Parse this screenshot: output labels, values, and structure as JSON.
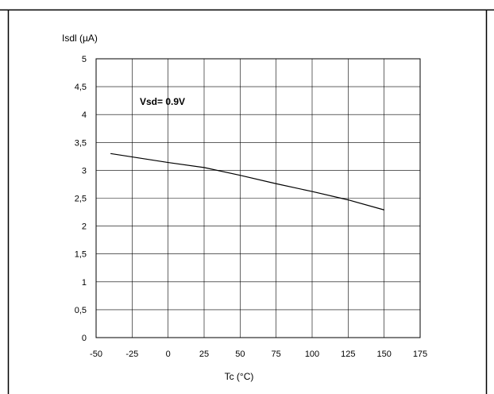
{
  "chart_data": {
    "type": "line",
    "title": "",
    "ylabel": "Isdl (µA)",
    "xlabel": "Tc (°C)",
    "annotation": "Vsd= 0.9V",
    "xlim": [
      -50,
      175
    ],
    "ylim": [
      0,
      5
    ],
    "xticks": [
      -50,
      -25,
      0,
      25,
      50,
      75,
      100,
      125,
      150,
      175
    ],
    "yticks": [
      0,
      0.5,
      1,
      1.5,
      2,
      2.5,
      3,
      3.5,
      4,
      4.5,
      5
    ],
    "xtick_labels": [
      "-50",
      "-25",
      "0",
      "25",
      "50",
      "75",
      "100",
      "125",
      "150",
      "175"
    ],
    "ytick_labels": [
      "0",
      "0,5",
      "1",
      "1,5",
      "2",
      "2,5",
      "3",
      "3,5",
      "4",
      "4,5",
      "5"
    ],
    "grid": true,
    "series": [
      {
        "x": [
          -40,
          0,
          25,
          50,
          75,
          100,
          125,
          150
        ],
        "y": [
          3.3,
          3.14,
          3.05,
          2.91,
          2.76,
          2.62,
          2.47,
          2.29
        ]
      }
    ],
    "line_color": "#000000",
    "grid_color": "#000000"
  }
}
